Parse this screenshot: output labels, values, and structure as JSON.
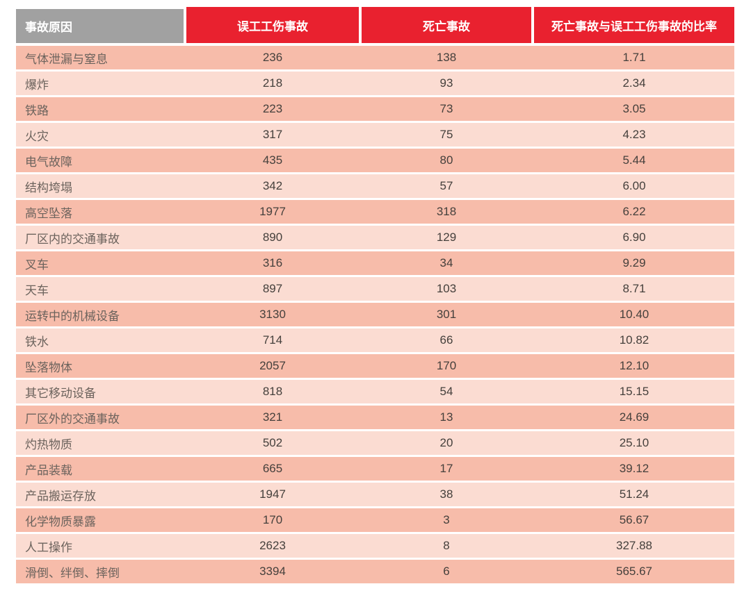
{
  "chart_data": {
    "type": "table",
    "columns": [
      "事故原因",
      "误工工伤事故",
      "死亡事故",
      "死亡事故与误工工伤事故的比率"
    ],
    "rows": [
      [
        "气体泄漏与窒息",
        "236",
        "138",
        "1.71"
      ],
      [
        "爆炸",
        "218",
        "93",
        "2.34"
      ],
      [
        "铁路",
        "223",
        "73",
        "3.05"
      ],
      [
        "火灾",
        "317",
        "75",
        "4.23"
      ],
      [
        "电气故障",
        "435",
        "80",
        "5.44"
      ],
      [
        "结构垮塌",
        "342",
        "57",
        "6.00"
      ],
      [
        "高空坠落",
        "1977",
        "318",
        "6.22"
      ],
      [
        "厂区内的交通事故",
        "890",
        "129",
        "6.90"
      ],
      [
        "叉车",
        "316",
        "34",
        "9.29"
      ],
      [
        "天车",
        "897",
        "103",
        "8.71"
      ],
      [
        "运转中的机械设备",
        "3130",
        "301",
        "10.40"
      ],
      [
        "铁水",
        "714",
        "66",
        "10.82"
      ],
      [
        "坠落物体",
        "2057",
        "170",
        "12.10"
      ],
      [
        "其它移动设备",
        "818",
        "54",
        "15.15"
      ],
      [
        "厂区外的交通事故",
        "321",
        "13",
        "24.69"
      ],
      [
        "灼热物质",
        "502",
        "20",
        "25.10"
      ],
      [
        "产品装载",
        "665",
        "17",
        "39.12"
      ],
      [
        "产品搬运存放",
        "1947",
        "38",
        "51.24"
      ],
      [
        "化学物质暴露",
        "170",
        "3",
        "56.67"
      ],
      [
        "人工操作",
        "2623",
        "8",
        "327.88"
      ],
      [
        "滑倒、绊倒、摔倒",
        "3394",
        "6",
        "565.67"
      ]
    ],
    "layout": {
      "header_background_cause": "#a1a1a1",
      "header_background_data": "#e9212f",
      "header_text_color": "#ffffff",
      "row_color_odd": "#f7bcaa",
      "row_color_even": "#fbdcd2",
      "grid": "white gaps between cells"
    }
  }
}
